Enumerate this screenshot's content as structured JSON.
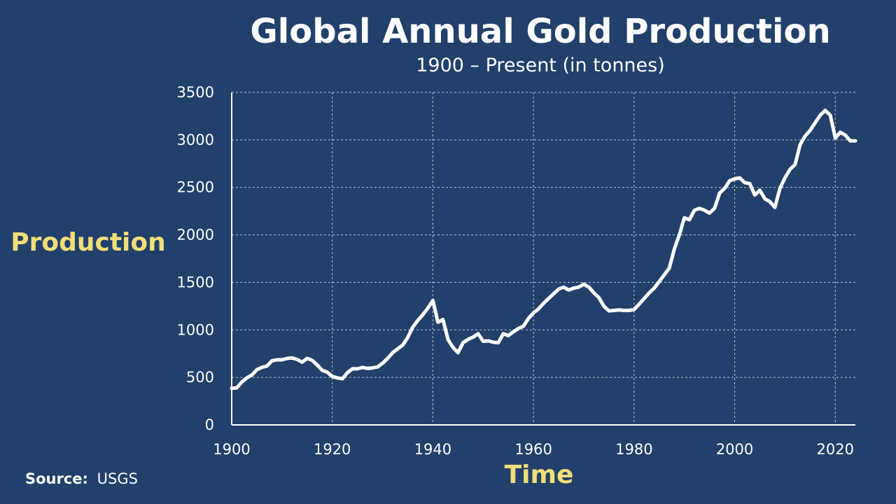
{
  "colors": {
    "background": "#21406b",
    "text": "#ffffff",
    "axis_title": "#f2dd7a",
    "line": "#ffffff"
  },
  "source": {
    "label": "Source:",
    "value": "USGS"
  },
  "chart_data": {
    "type": "line",
    "title": "Global Annual Gold Production",
    "subtitle": "1900 – Present (in tonnes)",
    "xlabel": "Time",
    "ylabel": "Production",
    "xlim": [
      1900,
      2024
    ],
    "ylim": [
      0,
      3500
    ],
    "xticks": [
      1900,
      1920,
      1940,
      1960,
      1980,
      2000,
      2020
    ],
    "yticks": [
      0,
      500,
      1000,
      1500,
      2000,
      2500,
      3000,
      3500
    ],
    "grid": true,
    "series": [
      {
        "x": [
          1900,
          1901,
          1902,
          1903,
          1904,
          1905,
          1906,
          1907,
          1908,
          1909,
          1910,
          1911,
          1912,
          1913,
          1914,
          1915,
          1916,
          1917,
          1918,
          1919,
          1920,
          1921,
          1922,
          1923,
          1924,
          1925,
          1926,
          1927,
          1928,
          1929,
          1930,
          1931,
          1932,
          1933,
          1934,
          1935,
          1936,
          1937,
          1938,
          1939,
          1940,
          1941,
          1942,
          1943,
          1944,
          1945,
          1946,
          1947,
          1948,
          1949,
          1950,
          1951,
          1952,
          1953,
          1954,
          1955,
          1956,
          1957,
          1958,
          1959,
          1960,
          1961,
          1962,
          1963,
          1964,
          1965,
          1966,
          1967,
          1968,
          1969,
          1970,
          1971,
          1972,
          1973,
          1974,
          1975,
          1976,
          1977,
          1978,
          1979,
          1980,
          1981,
          1982,
          1983,
          1984,
          1985,
          1986,
          1987,
          1988,
          1989,
          1990,
          1991,
          1992,
          1993,
          1994,
          1995,
          1996,
          1997,
          1998,
          1999,
          2000,
          2001,
          2002,
          2003,
          2004,
          2005,
          2006,
          2007,
          2008,
          2009,
          2010,
          2011,
          2012,
          2013,
          2014,
          2015,
          2016,
          2017,
          2018,
          2019,
          2020,
          2021,
          2022,
          2023,
          2024
        ],
        "values": [
          385,
          390,
          450,
          495,
          525,
          580,
          605,
          620,
          675,
          685,
          685,
          700,
          705,
          690,
          660,
          700,
          680,
          630,
          575,
          555,
          510,
          495,
          485,
          550,
          590,
          590,
          605,
          595,
          600,
          610,
          650,
          700,
          760,
          800,
          840,
          920,
          1030,
          1100,
          1160,
          1230,
          1310,
          1080,
          1110,
          900,
          815,
          760,
          865,
          900,
          925,
          960,
          880,
          885,
          870,
          865,
          960,
          940,
          980,
          1015,
          1040,
          1120,
          1180,
          1220,
          1280,
          1330,
          1380,
          1430,
          1450,
          1420,
          1440,
          1450,
          1480,
          1450,
          1390,
          1340,
          1250,
          1200,
          1205,
          1210,
          1205,
          1205,
          1215,
          1270,
          1330,
          1390,
          1440,
          1510,
          1580,
          1650,
          1850,
          2000,
          2180,
          2160,
          2260,
          2280,
          2260,
          2230,
          2280,
          2440,
          2490,
          2570,
          2590,
          2600,
          2550,
          2540,
          2420,
          2470,
          2380,
          2350,
          2290,
          2490,
          2600,
          2690,
          2740,
          2950,
          3040,
          3100,
          3180,
          3260,
          3310,
          3260,
          3020,
          3080,
          3050,
          2990,
          2990
        ]
      }
    ]
  }
}
